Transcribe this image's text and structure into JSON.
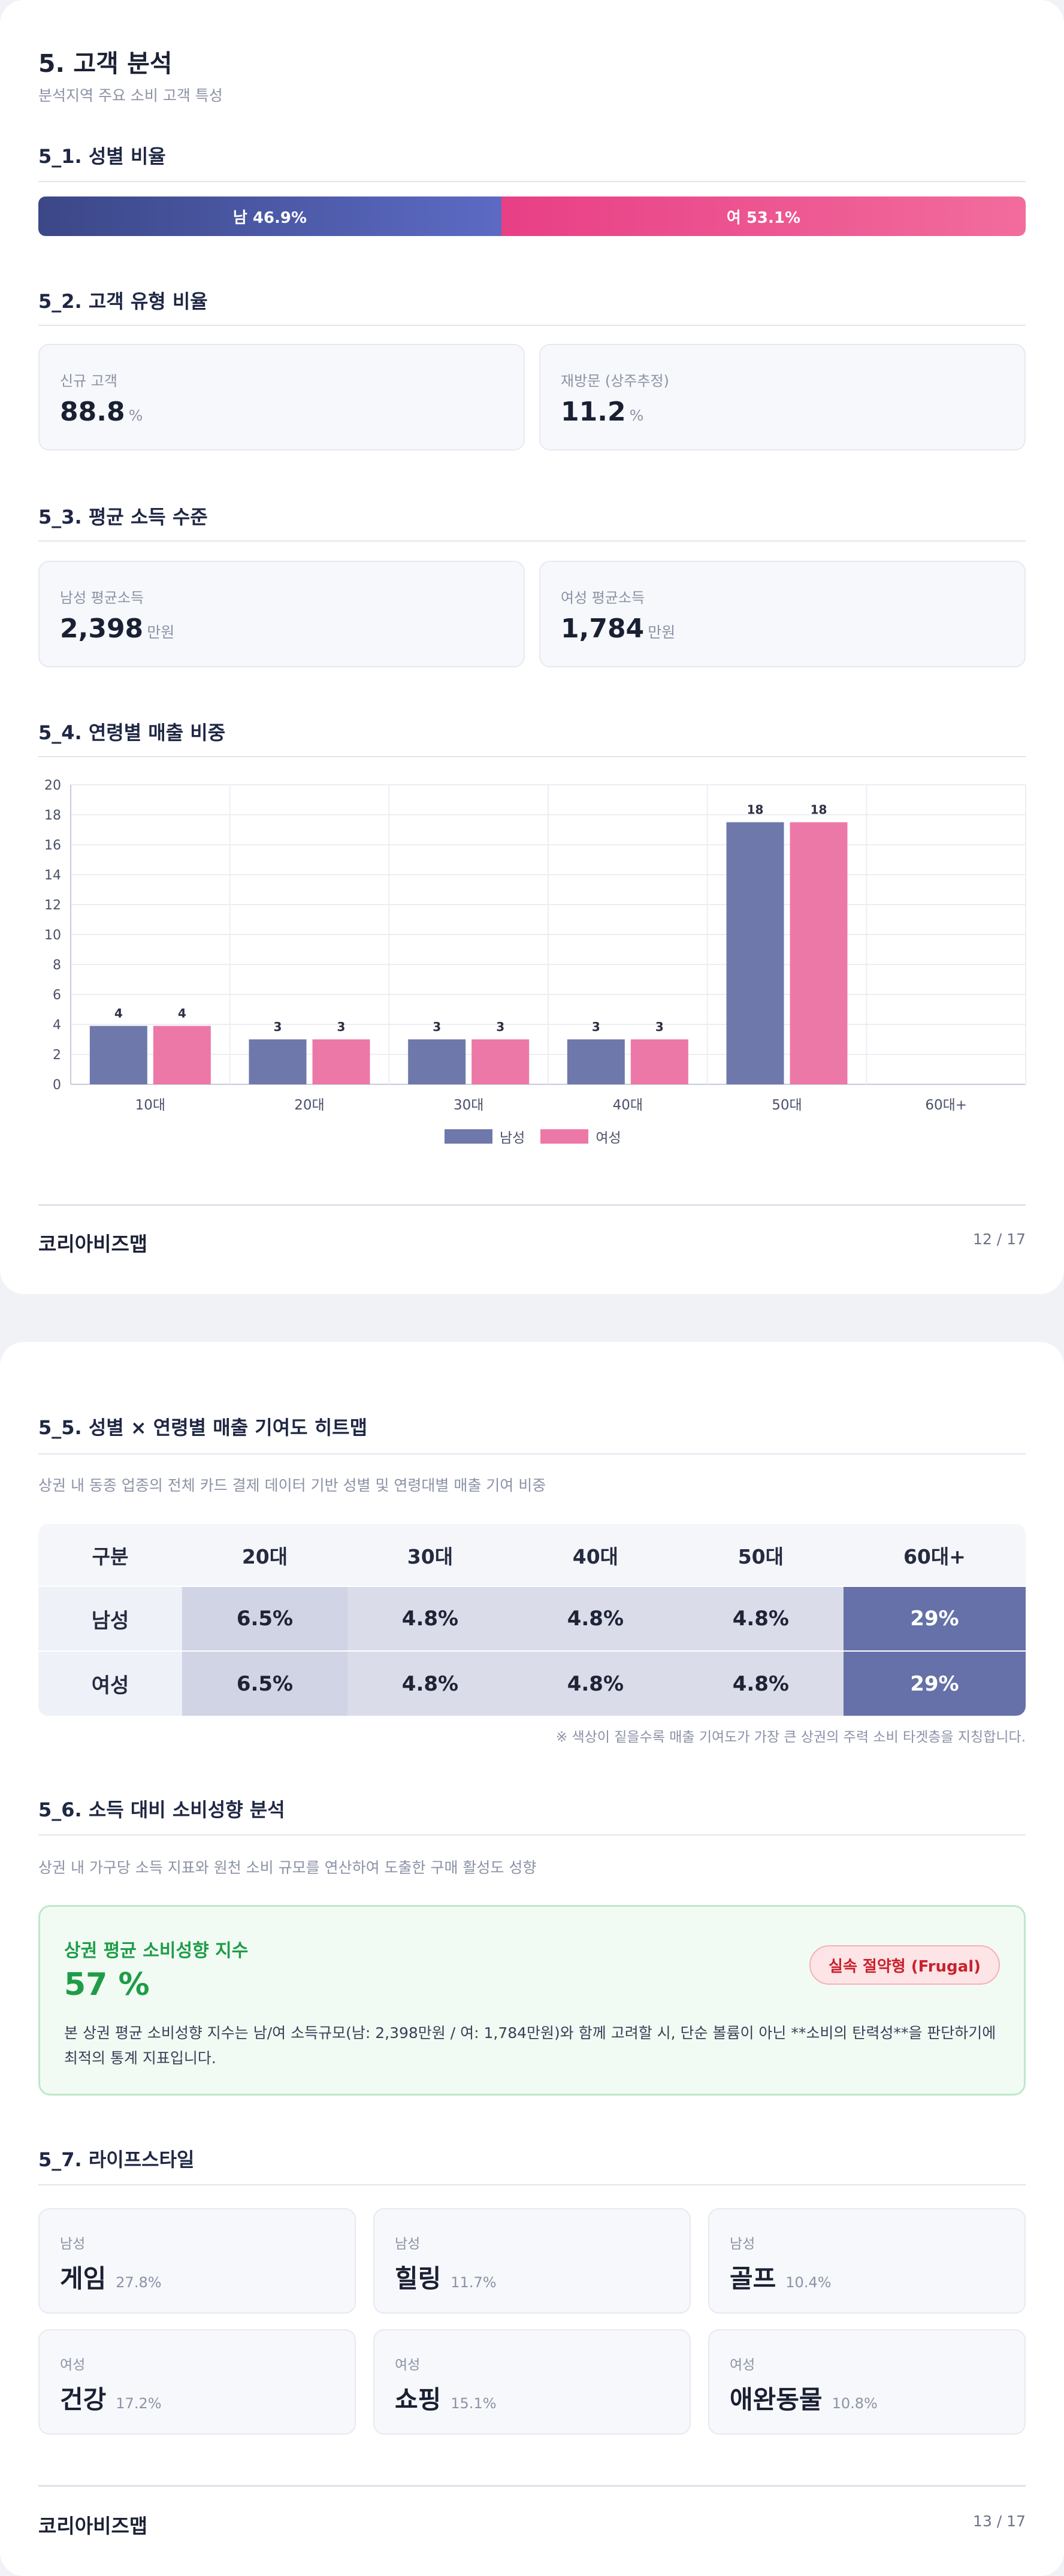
{
  "page1": {
    "title": "5. 고객 분석",
    "subtitle": "분석지역 주요 소비 고객 특성",
    "s1": {
      "heading": "5_1. 성별 비율",
      "male_label": "남 46.9%",
      "female_label": "여 53.1%",
      "male_share": 46.9,
      "female_share": 53.1,
      "male_color": "#4a56a6",
      "female_color": "#ec4d8c"
    },
    "s2": {
      "heading": "5_2. 고객 유형 비율",
      "new": {
        "label": "신규 고객",
        "value": "88.8",
        "unit": "%"
      },
      "returning": {
        "label": "재방문 (상주추정)",
        "value": "11.2",
        "unit": "%"
      }
    },
    "s3": {
      "heading": "5_3. 평균 소득 수준",
      "male": {
        "label": "남성 평균소득",
        "value": "2,398",
        "unit": "만원"
      },
      "female": {
        "label": "여성 평균소득",
        "value": "1,784",
        "unit": "만원"
      }
    },
    "s4": {
      "heading": "5_4. 연령별 매출 비중"
    },
    "footer": {
      "brand": "코리아비즈맵",
      "page": "12 / 17"
    }
  },
  "chart_data": {
    "type": "bar",
    "categories": [
      "10대",
      "20대",
      "30대",
      "40대",
      "50대",
      "60대+"
    ],
    "series": [
      {
        "name": "남성",
        "values": [
          4,
          3,
          3,
          3,
          18,
          0
        ],
        "color": "#6e78aa"
      },
      {
        "name": "여성",
        "values": [
          4,
          3,
          3,
          3,
          18,
          0
        ],
        "color": "#ec78a8"
      }
    ],
    "bar_values": [
      [
        3.9,
        3.0,
        3.0,
        3.0,
        17.5,
        0
      ],
      [
        3.9,
        3.0,
        3.0,
        3.0,
        17.5,
        0
      ]
    ],
    "ylim": [
      0,
      20
    ],
    "yticks": [
      "0",
      "2",
      "4",
      "6",
      "8",
      "10",
      "12",
      "14",
      "16",
      "18",
      "20"
    ],
    "legend": "bottom",
    "grid": true
  },
  "page2": {
    "s5": {
      "heading": "5_5. 성별 × 연령별 매출 기여도 히트맵",
      "desc": "상권 내 동종 업종의 전체 카드 결제 데이터 기반 성별 및 연령대별 매출 기여 비중",
      "headers": [
        "구분",
        "20대",
        "30대",
        "40대",
        "50대",
        "60대+"
      ],
      "rows": [
        {
          "label": "남성",
          "cells": [
            "6.5%",
            "4.8%",
            "4.8%",
            "4.8%",
            "29%"
          ]
        },
        {
          "label": "여성",
          "cells": [
            "6.5%",
            "4.8%",
            "4.8%",
            "4.8%",
            "29%"
          ]
        }
      ],
      "cell_colors": [
        "#d1d4e4",
        "#dadcea",
        "#dadcea",
        "#dadcea",
        "#6571a8"
      ],
      "note": "※ 색상이 짙을수록 매출 기여도가 가장 큰 상권의 주력 소비 타겟층을 지칭합니다."
    },
    "s6": {
      "heading": "5_6. 소득 대비 소비성향 분석",
      "desc": "상권 내 가구당 소득 지표와 원천 소비 규모를 연산하여 도출한 구매 활성도 성향",
      "label": "상권 평균 소비성향 지수",
      "value": "57 %",
      "badge": "실속 절약형 (Frugal)",
      "text": "본 상권 평균 소비성향 지수는 남/여 소득규모(남: 2,398만원 / 여: 1,784만원)와 함께 고려할 시, 단순 볼륨이 아닌 **소비의 탄력성**을 판단하기에 최적의 통계 지표입니다."
    },
    "s7": {
      "heading": "5_7. 라이프스타일",
      "items": [
        {
          "gender": "남성",
          "name": "게임",
          "pct": "27.8%"
        },
        {
          "gender": "남성",
          "name": "힐링",
          "pct": "11.7%"
        },
        {
          "gender": "남성",
          "name": "골프",
          "pct": "10.4%"
        },
        {
          "gender": "여성",
          "name": "건강",
          "pct": "17.2%"
        },
        {
          "gender": "여성",
          "name": "쇼핑",
          "pct": "15.1%"
        },
        {
          "gender": "여성",
          "name": "애완동물",
          "pct": "10.8%"
        }
      ]
    },
    "footer": {
      "brand": "코리아비즈맵",
      "page": "13 / 17"
    }
  }
}
